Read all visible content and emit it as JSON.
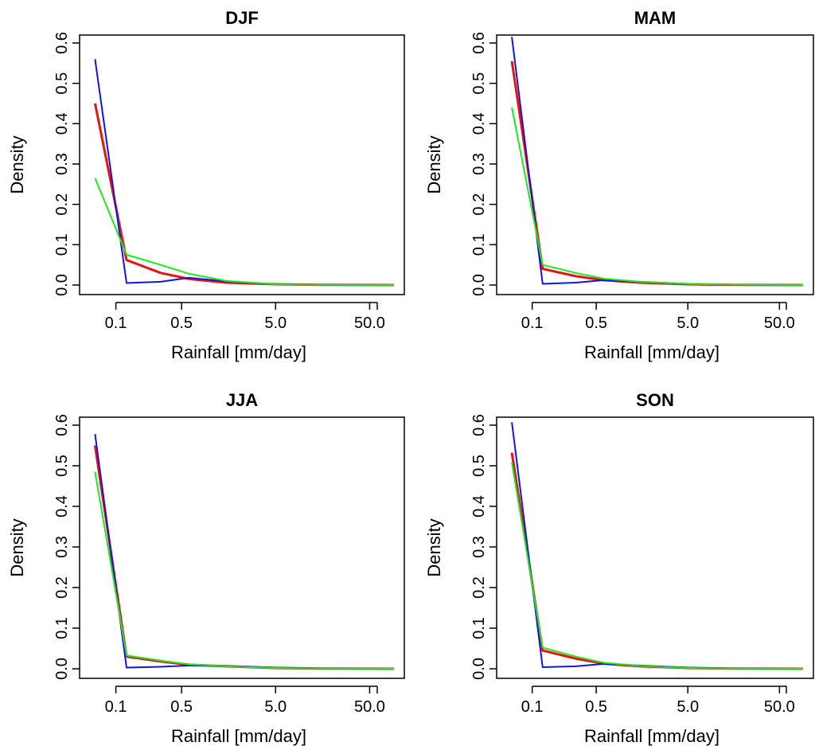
{
  "colors": {
    "red": "#e8140c",
    "blue": "#1414e0",
    "green": "#1ee81e",
    "axis": "#000000"
  },
  "chart_data": [
    {
      "type": "line",
      "title": "DJF",
      "xlabel": "Rainfall [mm/day]",
      "ylabel": "Density",
      "xscale": "log",
      "xlim": [
        0.05,
        100
      ],
      "ylim": [
        0,
        0.6
      ],
      "xticks": [
        0.1,
        0.5,
        5.0,
        50.0
      ],
      "xtick_labels": [
        "0.1",
        "0.5",
        "5.0",
        "50.0"
      ],
      "yticks": [
        0.0,
        0.1,
        0.2,
        0.3,
        0.4,
        0.5,
        0.6
      ],
      "ytick_labels": [
        "0.0",
        "0.1",
        "0.2",
        "0.3",
        "0.4",
        "0.5",
        "0.6"
      ],
      "grid": false,
      "legend": "none",
      "x": [
        0.06,
        0.13,
        0.3,
        0.6,
        1.5,
        5.0,
        15.0,
        40.0,
        90.0
      ],
      "series": [
        {
          "color": "#e8140c",
          "values": [
            0.45,
            0.062,
            0.03,
            0.015,
            0.006,
            0.002,
            0.0005,
            0.0002,
            0.0
          ]
        },
        {
          "color": "#1414e0",
          "values": [
            0.56,
            0.005,
            0.008,
            0.018,
            0.009,
            0.002,
            0.0005,
            0.0002,
            0.0
          ]
        },
        {
          "color": "#1ee81e",
          "values": [
            0.265,
            0.075,
            0.05,
            0.028,
            0.01,
            0.002,
            0.0005,
            0.0002,
            0.0
          ]
        }
      ]
    },
    {
      "type": "line",
      "title": "MAM",
      "xlabel": "Rainfall [mm/day]",
      "ylabel": "Density",
      "xscale": "log",
      "xlim": [
        0.05,
        100
      ],
      "ylim": [
        0,
        0.6
      ],
      "xticks": [
        0.1,
        0.5,
        5.0,
        50.0
      ],
      "xtick_labels": [
        "0.1",
        "0.5",
        "5.0",
        "50.0"
      ],
      "yticks": [
        0.0,
        0.1,
        0.2,
        0.3,
        0.4,
        0.5,
        0.6
      ],
      "ytick_labels": [
        "0.0",
        "0.1",
        "0.2",
        "0.3",
        "0.4",
        "0.5",
        "0.6"
      ],
      "grid": false,
      "legend": "none",
      "x": [
        0.06,
        0.13,
        0.3,
        0.6,
        1.5,
        5.0,
        15.0,
        40.0,
        90.0
      ],
      "series": [
        {
          "color": "#e8140c",
          "values": [
            0.555,
            0.04,
            0.022,
            0.012,
            0.006,
            0.002,
            0.0005,
            0.0002,
            0.0
          ]
        },
        {
          "color": "#1414e0",
          "values": [
            0.615,
            0.003,
            0.006,
            0.012,
            0.008,
            0.003,
            0.001,
            0.0003,
            0.0
          ]
        },
        {
          "color": "#1ee81e",
          "values": [
            0.44,
            0.05,
            0.03,
            0.016,
            0.008,
            0.003,
            0.001,
            0.0003,
            0.0
          ]
        }
      ]
    },
    {
      "type": "line",
      "title": "JJA",
      "xlabel": "Rainfall [mm/day]",
      "ylabel": "Density",
      "xscale": "log",
      "xlim": [
        0.05,
        100
      ],
      "ylim": [
        0,
        0.6
      ],
      "xticks": [
        0.1,
        0.5,
        5.0,
        50.0
      ],
      "xtick_labels": [
        "0.1",
        "0.5",
        "5.0",
        "50.0"
      ],
      "yticks": [
        0.0,
        0.1,
        0.2,
        0.3,
        0.4,
        0.5,
        0.6
      ],
      "ytick_labels": [
        "0.0",
        "0.1",
        "0.2",
        "0.3",
        "0.4",
        "0.5",
        "0.6"
      ],
      "grid": false,
      "legend": "none",
      "x": [
        0.06,
        0.13,
        0.3,
        0.6,
        1.5,
        5.0,
        15.0,
        40.0,
        90.0
      ],
      "series": [
        {
          "color": "#e8140c",
          "values": [
            0.55,
            0.03,
            0.018,
            0.01,
            0.006,
            0.002,
            0.0005,
            0.0002,
            0.0
          ]
        },
        {
          "color": "#1414e0",
          "values": [
            0.578,
            0.003,
            0.005,
            0.008,
            0.007,
            0.003,
            0.001,
            0.0003,
            0.0
          ]
        },
        {
          "color": "#1ee81e",
          "values": [
            0.485,
            0.033,
            0.02,
            0.011,
            0.006,
            0.002,
            0.0005,
            0.0002,
            0.0
          ]
        }
      ]
    },
    {
      "type": "line",
      "title": "SON",
      "xlabel": "Rainfall [mm/day]",
      "ylabel": "Density",
      "xscale": "log",
      "xlim": [
        0.05,
        100
      ],
      "ylim": [
        0,
        0.6
      ],
      "xticks": [
        0.1,
        0.5,
        5.0,
        50.0
      ],
      "xtick_labels": [
        "0.1",
        "0.5",
        "5.0",
        "50.0"
      ],
      "yticks": [
        0.0,
        0.1,
        0.2,
        0.3,
        0.4,
        0.5,
        0.6
      ],
      "ytick_labels": [
        "0.0",
        "0.1",
        "0.2",
        "0.3",
        "0.4",
        "0.5",
        "0.6"
      ],
      "grid": false,
      "legend": "none",
      "x": [
        0.06,
        0.13,
        0.3,
        0.6,
        1.5,
        5.0,
        15.0,
        40.0,
        90.0
      ],
      "series": [
        {
          "color": "#e8140c",
          "values": [
            0.532,
            0.045,
            0.025,
            0.013,
            0.006,
            0.002,
            0.0005,
            0.0002,
            0.0
          ]
        },
        {
          "color": "#1414e0",
          "values": [
            0.607,
            0.004,
            0.006,
            0.012,
            0.008,
            0.003,
            0.001,
            0.0003,
            0.0
          ]
        },
        {
          "color": "#1ee81e",
          "values": [
            0.508,
            0.052,
            0.03,
            0.015,
            0.007,
            0.002,
            0.0005,
            0.0002,
            0.0
          ]
        }
      ]
    }
  ]
}
